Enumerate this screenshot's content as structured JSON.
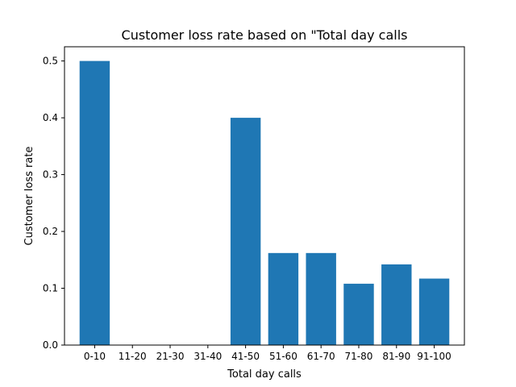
{
  "chart_data": {
    "type": "bar",
    "title": "Customer loss rate based on \"Total day calls",
    "xlabel": "Total day calls",
    "ylabel": "Customer loss rate",
    "categories": [
      "0-10",
      "11-20",
      "21-30",
      "31-40",
      "41-50",
      "51-60",
      "61-70",
      "71-80",
      "81-90",
      "91-100"
    ],
    "values": [
      0.5,
      0.0,
      0.0,
      0.0,
      0.4,
      0.162,
      0.162,
      0.108,
      0.142,
      0.117
    ],
    "ylim": [
      0,
      0.525
    ],
    "yticks": [
      0.0,
      0.1,
      0.2,
      0.3,
      0.4,
      0.5
    ],
    "ytick_labels": [
      "0.0",
      "0.1",
      "0.2",
      "0.3",
      "0.4",
      "0.5"
    ],
    "bar_color": "#1f77b4",
    "grid": false,
    "legend": "none"
  }
}
